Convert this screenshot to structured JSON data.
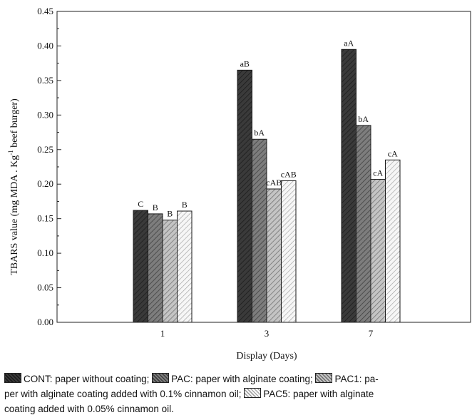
{
  "chart_data": {
    "type": "bar",
    "xlabel": "Display (Days)",
    "ylabel": "TBARS value (mg MDA . Kg",
    "ylabel_sup": "-1",
    "ylabel_tail": " beef burger)",
    "categories": [
      "1",
      "3",
      "7"
    ],
    "ylim": [
      0,
      0.45
    ],
    "yticks": [
      "0.00",
      "0.05",
      "0.10",
      "0.15",
      "0.20",
      "0.25",
      "0.30",
      "0.35",
      "0.40",
      "0.45"
    ],
    "grid": false,
    "series": [
      {
        "name": "CONT",
        "values": [
          0.162,
          0.365,
          0.395
        ],
        "labels": [
          "C",
          "aB",
          "aA"
        ],
        "fill": "#3a3a3a",
        "hatch": "#1a1a1a"
      },
      {
        "name": "PAC",
        "values": [
          0.157,
          0.265,
          0.285
        ],
        "labels": [
          "B",
          "bA",
          "bA"
        ],
        "fill": "#7d7d7d",
        "hatch": "#3c3c3c"
      },
      {
        "name": "PAC1",
        "values": [
          0.148,
          0.193,
          0.207
        ],
        "labels": [
          "B",
          "cAB",
          "cA"
        ],
        "fill": "#c4c4c4",
        "hatch": "#6e6e6e"
      },
      {
        "name": "PAC5",
        "values": [
          0.161,
          0.205,
          0.235
        ],
        "labels": [
          "B",
          "cAB",
          "cA"
        ],
        "fill": "#f6f6f6",
        "hatch": "#9a9a9a"
      }
    ]
  },
  "caption": {
    "line1": "CONT: paper without coating; ",
    "line1b": "PAC: paper with alginate coating; ",
    "line1c": "PAC1: pa-",
    "line2": "per with alginate coating added with 0.1% cinnamon oil; ",
    "line2b": "PAC5: paper with alginate",
    "line3": "coating added with 0.05% cinnamon oil."
  }
}
